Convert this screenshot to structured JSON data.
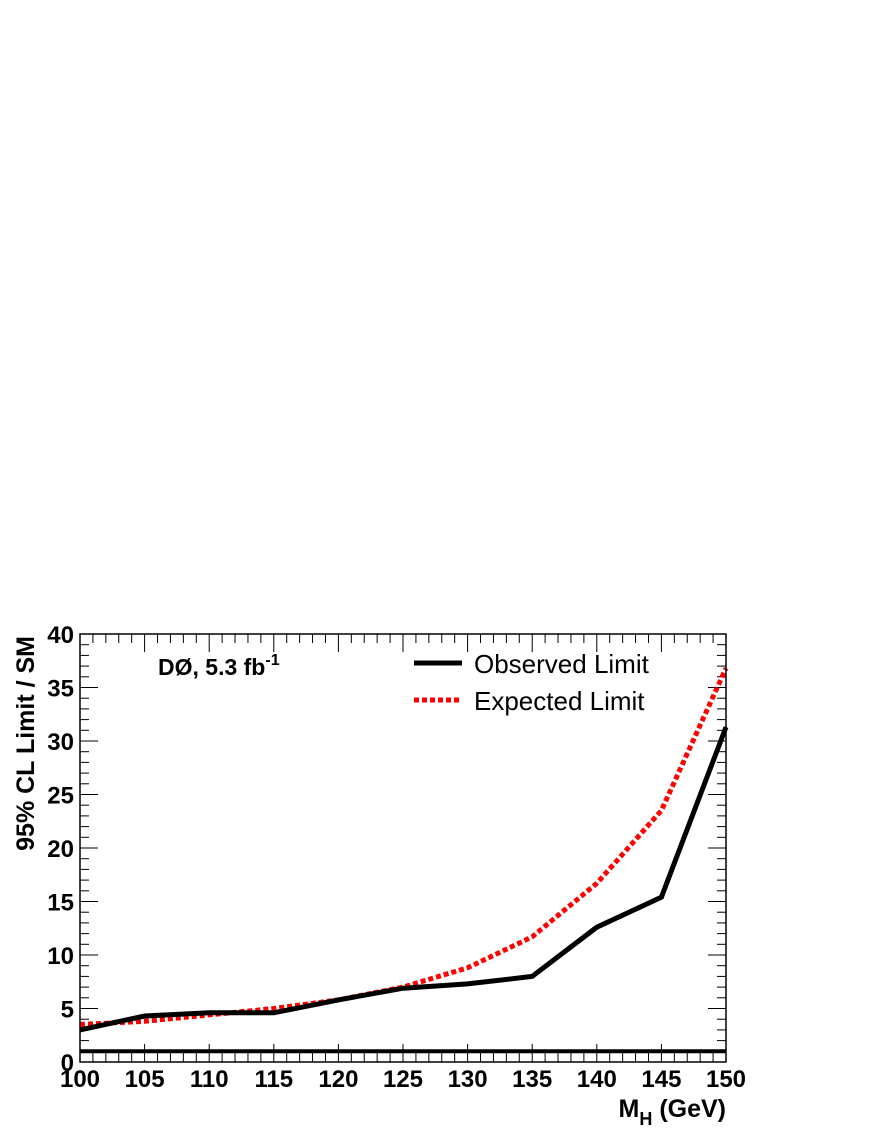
{
  "chart_data": {
    "type": "line",
    "annotation": {
      "main": "DØ, 5.3 fb",
      "sup": "-1"
    },
    "xlabel": {
      "main": "M",
      "sub": "H",
      "rest": " (GeV)"
    },
    "ylabel": "95% CL Limit / SM",
    "xlim": [
      100,
      150
    ],
    "ylim": [
      0,
      40
    ],
    "x_ticks": [
      100,
      105,
      110,
      115,
      120,
      125,
      130,
      135,
      140,
      145,
      150
    ],
    "y_ticks": [
      0,
      5,
      10,
      15,
      20,
      25,
      30,
      35,
      40
    ],
    "legend_position": "top-right",
    "reference_line": {
      "y": 1,
      "color": "#000000"
    },
    "series": [
      {
        "name": "Observed Limit",
        "style": "solid",
        "color": "#000000",
        "x": [
          100,
          105,
          110,
          115,
          120,
          125,
          130,
          135,
          140,
          145,
          150
        ],
        "y": [
          3.0,
          4.3,
          4.6,
          4.6,
          5.8,
          6.9,
          7.3,
          8.0,
          12.6,
          15.4,
          31.3
        ]
      },
      {
        "name": "Expected Limit",
        "style": "dotted",
        "color": "#ff0000",
        "x": [
          100,
          105,
          110,
          115,
          120,
          125,
          130,
          135,
          140,
          145,
          150
        ],
        "y": [
          3.5,
          3.8,
          4.4,
          5.0,
          5.8,
          7.0,
          8.8,
          11.7,
          16.7,
          23.5,
          36.8
        ]
      }
    ]
  }
}
